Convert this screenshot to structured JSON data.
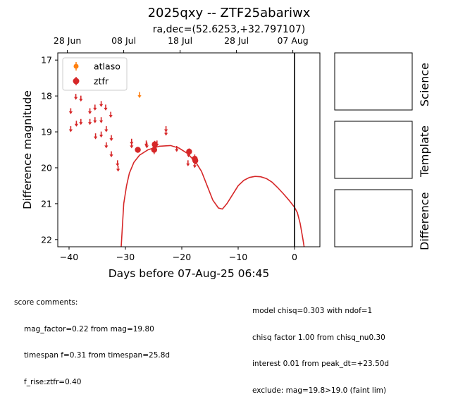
{
  "title": "2025qxy -- ZTF25abariwx",
  "subtitle": "ra,dec=(52.6253,+32.797107)",
  "colors": {
    "atlaso": "#ff7f0e",
    "ztfr": "#d62728",
    "model": "#d62728",
    "now_line": "#000000"
  },
  "chart_data": {
    "type": "scatter",
    "xlabel": "Days before 07-Aug-25 06:45",
    "ylabel": "Difference magnitude",
    "xlim": [
      -42,
      4.5
    ],
    "ylim": [
      22.2,
      16.8
    ],
    "y_inverted": true,
    "x_ticks": [
      -40,
      -30,
      -20,
      -10,
      0
    ],
    "y_ticks": [
      17,
      18,
      19,
      20,
      21,
      22
    ],
    "top_axis_ticks": [
      {
        "label": "28 Jun",
        "x": -40.3
      },
      {
        "label": "08 Jul",
        "x": -30.3
      },
      {
        "label": "18 Jul",
        "x": -20.3
      },
      {
        "label": "28 Jul",
        "x": -10.3
      },
      {
        "label": "07 Aug",
        "x": -0.3
      }
    ],
    "legend": {
      "placement": "upper-left",
      "entries": [
        "atlaso",
        "ztfr"
      ]
    },
    "reference_line_x": 0,
    "series": [
      {
        "name": "atlaso",
        "kind": "upper_limit",
        "points": [
          [
            -27.5,
            17.95
          ]
        ]
      },
      {
        "name": "ztfr",
        "kind": "upper_limit",
        "points": [
          [
            -39.7,
            18.4
          ],
          [
            -39.7,
            18.9
          ],
          [
            -38.8,
            18.0
          ],
          [
            -38.7,
            18.75
          ],
          [
            -37.9,
            18.05
          ],
          [
            -37.9,
            18.7
          ],
          [
            -36.3,
            18.4
          ],
          [
            -36.3,
            18.7
          ],
          [
            -35.4,
            18.3
          ],
          [
            -35.4,
            18.65
          ],
          [
            -35.3,
            19.1
          ],
          [
            -34.3,
            18.2
          ],
          [
            -34.3,
            18.65
          ],
          [
            -34.3,
            19.05
          ],
          [
            -33.5,
            18.3
          ],
          [
            -33.4,
            18.9
          ],
          [
            -33.4,
            19.35
          ],
          [
            -32.6,
            18.5
          ],
          [
            -32.5,
            19.15
          ],
          [
            -32.5,
            19.6
          ],
          [
            -31.4,
            19.85
          ],
          [
            -31.3,
            20.0
          ],
          [
            -28.9,
            19.25
          ],
          [
            -28.9,
            19.35
          ],
          [
            -26.3,
            19.3
          ],
          [
            -26.2,
            19.35
          ],
          [
            -24.4,
            19.3
          ],
          [
            -22.8,
            18.9
          ],
          [
            -22.8,
            19.0
          ],
          [
            -20.9,
            19.45
          ],
          [
            -18.9,
            19.85
          ],
          [
            -18.8,
            19.6
          ],
          [
            -17.7,
            19.9
          ]
        ]
      },
      {
        "name": "ztfr",
        "kind": "detection",
        "points": [
          [
            -27.8,
            19.5,
            0.08
          ],
          [
            -24.9,
            19.5,
            0.12
          ],
          [
            -24.8,
            19.35,
            0.1
          ],
          [
            -18.7,
            19.55,
            0.09
          ],
          [
            -17.7,
            19.75,
            0.12
          ],
          [
            -17.6,
            19.8,
            0.1
          ]
        ]
      },
      {
        "name": "model",
        "kind": "curve",
        "points": [
          [
            -30.75,
            22.2
          ],
          [
            -30.3,
            21.0
          ],
          [
            -29.8,
            20.5
          ],
          [
            -29.3,
            20.15
          ],
          [
            -28.5,
            19.85
          ],
          [
            -27.5,
            19.65
          ],
          [
            -26,
            19.5
          ],
          [
            -24,
            19.4
          ],
          [
            -22,
            19.38
          ],
          [
            -20.5,
            19.45
          ],
          [
            -19,
            19.6
          ],
          [
            -17.5,
            19.85
          ],
          [
            -16.5,
            20.1
          ],
          [
            -15.5,
            20.5
          ],
          [
            -14.5,
            20.9
          ],
          [
            -13.5,
            21.12
          ],
          [
            -12.8,
            21.15
          ],
          [
            -12,
            21.0
          ],
          [
            -11,
            20.75
          ],
          [
            -10,
            20.5
          ],
          [
            -9,
            20.35
          ],
          [
            -8,
            20.27
          ],
          [
            -7,
            20.24
          ],
          [
            -6,
            20.25
          ],
          [
            -5,
            20.3
          ],
          [
            -4,
            20.4
          ],
          [
            -3,
            20.55
          ],
          [
            -2,
            20.72
          ],
          [
            -1,
            20.9
          ],
          [
            0,
            21.1
          ],
          [
            0.5,
            21.25
          ],
          [
            1,
            21.55
          ],
          [
            1.5,
            22.0
          ],
          [
            1.7,
            22.2
          ]
        ]
      }
    ]
  },
  "panels": [
    "Science",
    "Template",
    "Difference"
  ],
  "score_comments": {
    "header": "score comments:",
    "lines": [
      "mag_factor=0.22 from mag=19.80",
      "timespan f=0.31 from timespan=25.8d",
      "f_rise:ztfr=0.40"
    ]
  },
  "model_comments": {
    "lines": [
      "model chisq=0.303 with ndof=1",
      "chisq factor 1.00 from chisq_nu0.30",
      "interest 0.01 from peak_dt=+23.50d",
      "exclude: mag=19.8>19.0 (faint lim)"
    ]
  }
}
